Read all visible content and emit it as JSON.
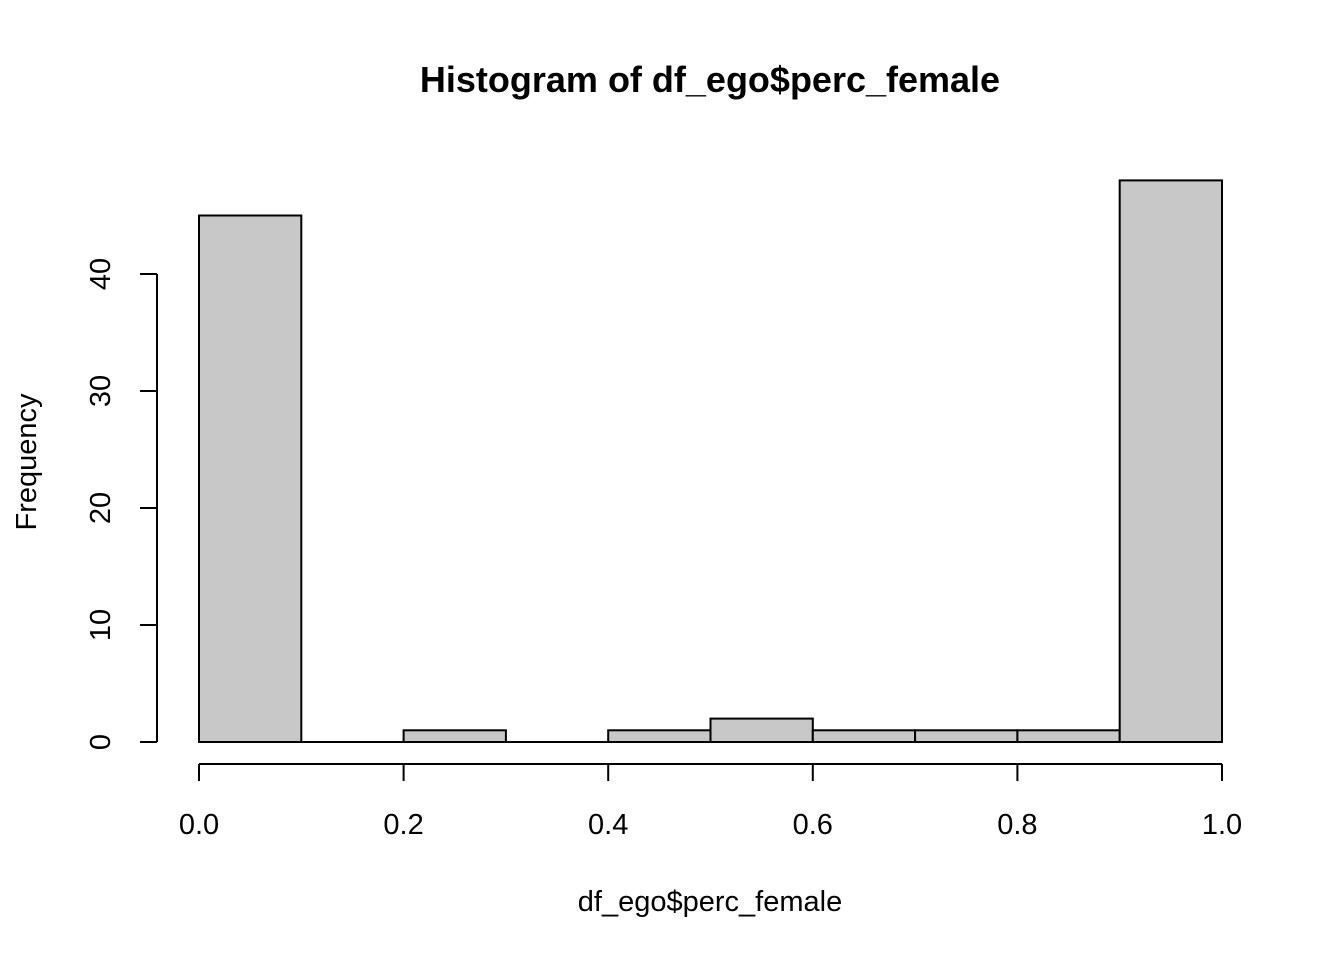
{
  "chart_data": {
    "type": "bar",
    "title": "Histogram of df_ego$perc_female",
    "xlabel": "df_ego$perc_female",
    "ylabel": "Frequency",
    "bins": [
      {
        "from": 0.0,
        "to": 0.1,
        "count": 45
      },
      {
        "from": 0.1,
        "to": 0.2,
        "count": 0
      },
      {
        "from": 0.2,
        "to": 0.3,
        "count": 1
      },
      {
        "from": 0.3,
        "to": 0.4,
        "count": 0
      },
      {
        "from": 0.4,
        "to": 0.5,
        "count": 1
      },
      {
        "from": 0.5,
        "to": 0.6,
        "count": 2
      },
      {
        "from": 0.6,
        "to": 0.7,
        "count": 1
      },
      {
        "from": 0.7,
        "to": 0.8,
        "count": 1
      },
      {
        "from": 0.8,
        "to": 0.9,
        "count": 1
      },
      {
        "from": 0.9,
        "to": 1.0,
        "count": 48
      }
    ],
    "xlim": [
      0,
      1
    ],
    "ylim": [
      0,
      48
    ],
    "xticks": [
      0.0,
      0.2,
      0.4,
      0.6,
      0.8,
      1.0
    ],
    "xtick_labels": [
      "0.0",
      "0.2",
      "0.4",
      "0.6",
      "0.8",
      "1.0"
    ],
    "yticks": [
      0,
      10,
      20,
      30,
      40
    ],
    "ytick_labels": [
      "0",
      "10",
      "20",
      "30",
      "40"
    ],
    "bar_fill": "#c8c8c8",
    "grid": false,
    "legend": "none"
  }
}
